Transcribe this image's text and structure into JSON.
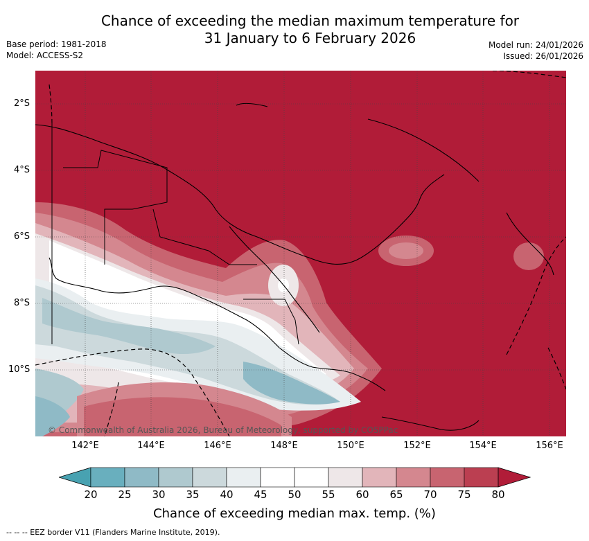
{
  "title_line1": "Chance of exceeding the median maximum temperature for",
  "title_line2": "31 January to 6 February 2026",
  "meta_left": [
    "Base period: 1981-2018",
    "Model: ACCESS-S2"
  ],
  "meta_right": [
    "Model run: 24/01/2026",
    "Issued: 26/01/2026"
  ],
  "copyright": "© Commonwealth of Australia 2026, Bureau of Meteorology, supported by COSPPac",
  "lat_ticks": [
    "2°S",
    "4°S",
    "6°S",
    "8°S",
    "10°S"
  ],
  "lon_ticks": [
    "142°E",
    "144°E",
    "146°E",
    "148°E",
    "150°E",
    "152°E",
    "154°E",
    "156°E"
  ],
  "colorbar": {
    "labels": [
      "20",
      "25",
      "30",
      "35",
      "40",
      "45",
      "50",
      "55",
      "60",
      "65",
      "70",
      "75",
      "80"
    ],
    "colors": [
      "#48a2b1",
      "#69afbe",
      "#8fbac6",
      "#afc9cf",
      "#ccd9dc",
      "#eaeff1",
      "#ffffff",
      "#ffffff",
      "#eee7e8",
      "#e2b5ba",
      "#d4878f",
      "#c86470",
      "#bb3f51",
      "#b11c38"
    ],
    "title": "Chance of exceeding median max. temp. (%)"
  },
  "footer": "--  --  -- EEZ border V11 (Flanders Marine Institute, 2019).",
  "map_colors": {
    "high": "#b11c38",
    "low": "#8fbac6"
  }
}
